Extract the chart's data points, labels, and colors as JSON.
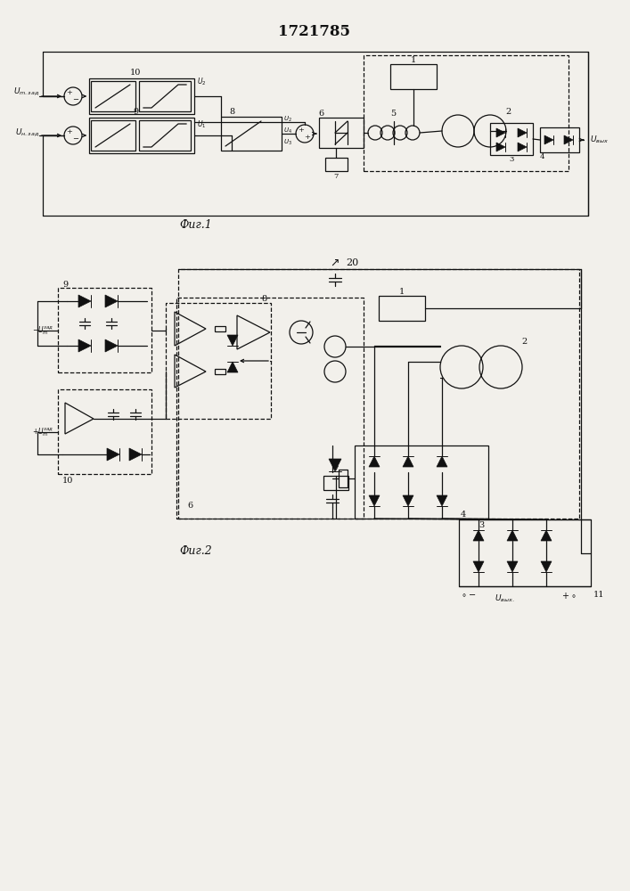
{
  "title": "1721785",
  "fig1_label": "Фиг.1",
  "fig2_label": "Фиг.2",
  "label_20": "20",
  "bg_color": "#f2f0eb",
  "lc": "#111111"
}
